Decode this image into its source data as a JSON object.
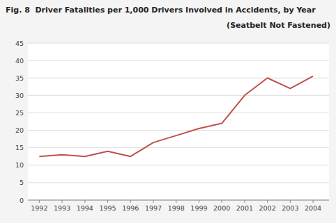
{
  "chart_data": {
    "type": "line",
    "title": "Fig. 8  Driver Fatalities per 1,000 Drivers Involved in Accidents, by Year",
    "subtitle": "(Seatbelt Not Fastened)",
    "x": [
      1992,
      1993,
      1994,
      1995,
      1996,
      1997,
      1998,
      1999,
      2000,
      2001,
      2002,
      2003,
      2004
    ],
    "values": [
      12.5,
      13.0,
      12.5,
      14.0,
      12.5,
      16.5,
      18.5,
      20.5,
      22.0,
      30.0,
      35.0,
      32.0,
      35.5
    ],
    "color": "#c0504d",
    "xlim": [
      1991.5,
      2004.7
    ],
    "xticks": [
      1992,
      1993,
      1994,
      1995,
      1996,
      1997,
      1998,
      1999,
      2000,
      2001,
      2002,
      2003,
      2004
    ],
    "ylim": [
      0,
      45
    ],
    "yticks": [
      0,
      5,
      10,
      15,
      20,
      25,
      30,
      35,
      40,
      45
    ],
    "grid": true
  }
}
